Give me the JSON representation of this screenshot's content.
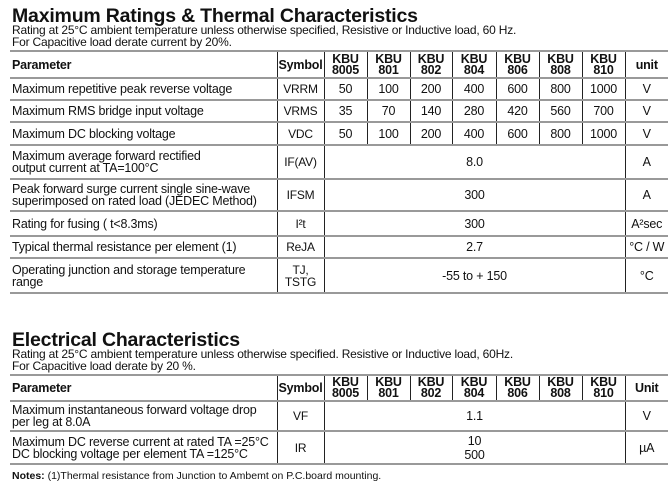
{
  "section1": {
    "title": "Maximum Ratings & Thermal Characteristics",
    "subtitle_line1": "Rating at 25°C ambient temperature unless otherwise specified, Resistive or Inductive load, 60 Hz.",
    "subtitle_line2": "For Capacitive load derate current by 20%.",
    "headers": {
      "parameter": "Parameter",
      "symbol": "Symbol",
      "unit": "unit"
    },
    "models": [
      [
        "KBU",
        "8005"
      ],
      [
        "KBU",
        "801"
      ],
      [
        "KBU",
        "802"
      ],
      [
        "KBU",
        "804"
      ],
      [
        "KBU",
        "806"
      ],
      [
        "KBU",
        "808"
      ],
      [
        "KBU",
        "810"
      ]
    ],
    "rows": [
      {
        "parameter": "Maximum repetitive peak reverse voltage",
        "symbol": "VRRM",
        "values": [
          "50",
          "100",
          "200",
          "400",
          "600",
          "800",
          "1000"
        ],
        "unit": "V"
      },
      {
        "parameter": "Maximum RMS bridge input voltage",
        "symbol": "VRMS",
        "values": [
          "35",
          "70",
          "140",
          "280",
          "420",
          "560",
          "700"
        ],
        "unit": "V"
      },
      {
        "parameter": "Maximum DC blocking voltage",
        "symbol": "VDC",
        "values": [
          "50",
          "100",
          "200",
          "400",
          "600",
          "800",
          "1000"
        ],
        "unit": "V"
      },
      {
        "parameter": "Maximum average forward rectified\noutput current at TA=100°C",
        "symbol": "IF(AV)",
        "value": "8.0",
        "unit": "A"
      },
      {
        "parameter": "Peak forward surge current single sine-wave\nsuperimposed on rated load (JEDEC Method)",
        "symbol": "IFSM",
        "value": "300",
        "unit": "A"
      },
      {
        "parameter": "Rating for fusing ( t<8.3ms)",
        "symbol": "I²t",
        "value": "300",
        "unit": "A²sec"
      },
      {
        "parameter": "Typical  thermal resistance per element (1)",
        "symbol": "ReJA",
        "value": "2.7",
        "unit": "°C / W"
      },
      {
        "parameter": "Operating junction and storage temperature\nrange",
        "symbol": "TJ,\nTSTG",
        "value": "-55 to + 150",
        "unit": "°C"
      }
    ]
  },
  "section2": {
    "title": "Electrical Characteristics",
    "subtitle_line1": "Rating at 25°C ambient temperature unless otherwise specified. Resistive or Inductive load, 60Hz.",
    "subtitle_line2": "For Capacitive load derate by 20 %.",
    "headers": {
      "parameter": "Parameter",
      "symbol": "Symbol",
      "unit": "Unit"
    },
    "models": [
      [
        "KBU",
        "8005"
      ],
      [
        "KBU",
        "801"
      ],
      [
        "KBU",
        "802"
      ],
      [
        "KBU",
        "804"
      ],
      [
        "KBU",
        "806"
      ],
      [
        "KBU",
        "808"
      ],
      [
        "KBU",
        "810"
      ]
    ],
    "rows": [
      {
        "parameter": "Maximum instantaneous forward voltage drop\nper leg at 8.0A",
        "symbol": "VF",
        "value": "1.1",
        "unit": "V"
      },
      {
        "parameter": "Maximum DC reverse current at rated  TA =25°C\nDC blocking voltage per element       TA =125°C",
        "symbol": "IR",
        "value": "10\n500",
        "unit": "µA"
      }
    ]
  },
  "notes": {
    "label": "Notes:",
    "text": " (1)Thermal resistance from Junction to Ambemt on P.C.board mounting."
  }
}
